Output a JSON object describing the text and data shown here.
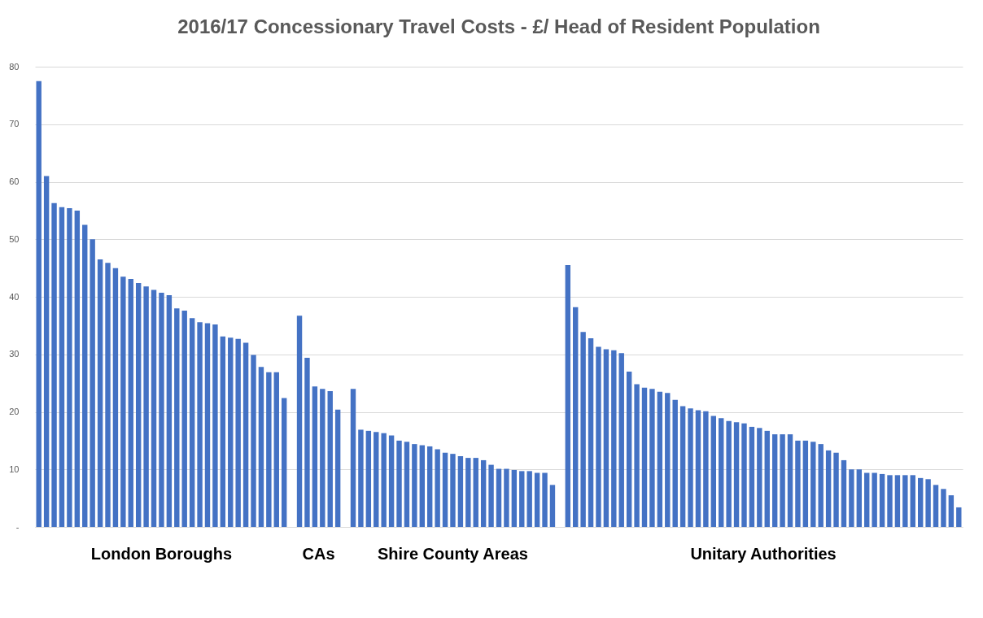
{
  "chart_data": {
    "type": "bar",
    "title": "2016/17 Concessionary Travel Costs - £/ Head of Resident Population",
    "categories": [
      null,
      null,
      null,
      null,
      null,
      null,
      null,
      null,
      null,
      null,
      null,
      null,
      null,
      null,
      null,
      null,
      null,
      null,
      null,
      null,
      null,
      null,
      null,
      null,
      null,
      null,
      null,
      null,
      null,
      null,
      null,
      null,
      null,
      null,
      null,
      null,
      null,
      null,
      null,
      null,
      null,
      null,
      null,
      null,
      null,
      null,
      null,
      null,
      null,
      null,
      null,
      null,
      null,
      null,
      null,
      null,
      null,
      null,
      null,
      null,
      null,
      null,
      null,
      null,
      null,
      null,
      null,
      null,
      null,
      null,
      null,
      null,
      null,
      null,
      null,
      null,
      null,
      null,
      null,
      null,
      null,
      null,
      null,
      null,
      null,
      null,
      null,
      null,
      null,
      null,
      null,
      null,
      null,
      null,
      null,
      null,
      null,
      null,
      null,
      null,
      null,
      null,
      null,
      null,
      null,
      null,
      null,
      null,
      null,
      null,
      null,
      null,
      null,
      null,
      null,
      null,
      null,
      null,
      null,
      null,
      null
    ],
    "values": [
      77.5,
      61.0,
      56.3,
      55.6,
      55.4,
      55.0,
      52.5,
      50.0,
      46.5,
      45.9,
      45.0,
      43.5,
      43.1,
      42.4,
      41.8,
      41.2,
      40.7,
      40.3,
      38.0,
      37.6,
      36.3,
      35.6,
      35.4,
      35.2,
      33.1,
      32.9,
      32.7,
      32.0,
      29.9,
      27.8,
      26.9,
      26.9,
      22.4,
      null,
      36.7,
      29.4,
      24.4,
      24.0,
      23.6,
      20.4,
      null,
      24.0,
      16.9,
      16.7,
      16.5,
      16.3,
      15.9,
      15.0,
      14.8,
      14.4,
      14.2,
      14.0,
      13.5,
      12.9,
      12.7,
      12.3,
      12.0,
      12.0,
      11.6,
      10.8,
      10.1,
      10.1,
      9.9,
      9.7,
      9.7,
      9.4,
      9.4,
      7.3,
      null,
      45.5,
      38.2,
      33.9,
      32.8,
      31.3,
      30.9,
      30.7,
      30.2,
      27.0,
      24.8,
      24.2,
      24.0,
      23.5,
      23.3,
      22.1,
      21.0,
      20.6,
      20.3,
      20.1,
      19.3,
      18.9,
      18.4,
      18.2,
      18.0,
      17.4,
      17.2,
      16.7,
      16.1,
      16.1,
      16.1,
      15.0,
      15.0,
      14.8,
      14.4,
      13.3,
      12.9,
      11.6,
      10.0,
      10.0,
      9.4,
      9.4,
      9.2,
      9.0,
      9.0,
      9.0,
      9.0,
      8.5,
      8.3,
      7.3,
      6.6,
      5.5,
      3.4
    ],
    "color": "#4472c4",
    "ylim": [
      0,
      80
    ],
    "yticks": [
      {
        "value": 0,
        "label": "-"
      },
      10,
      20,
      30,
      40,
      50,
      60,
      70,
      80
    ],
    "grid": "y",
    "tick_labels": "y",
    "annotations": [
      "London Boroughs",
      "CAs",
      "Shire County Areas",
      "Unitary Authorities"
    ]
  }
}
